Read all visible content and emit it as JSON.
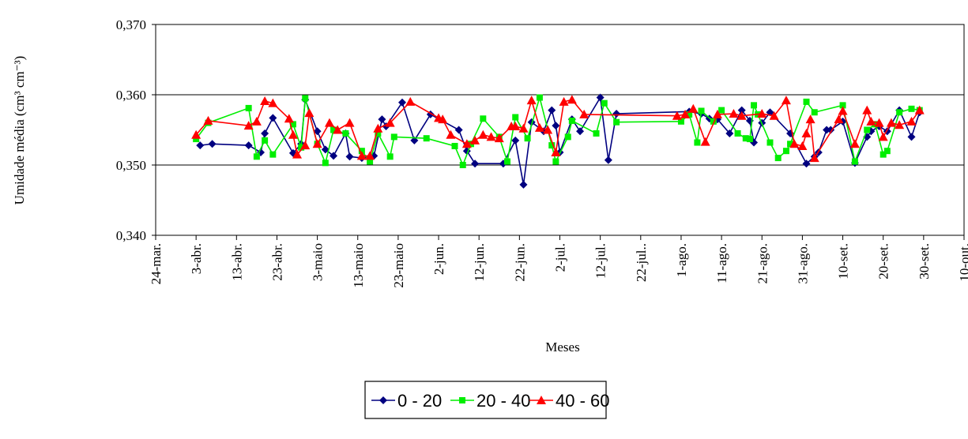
{
  "chart_data": {
    "type": "line",
    "y_label": "Umidade média (cm³ cm⁻³)",
    "x_label": "Meses",
    "xlim": [
      83,
      283
    ],
    "xticks": [
      {
        "value": 83,
        "label": "24-mar."
      },
      {
        "value": 93,
        "label": "3-abr."
      },
      {
        "value": 103,
        "label": "13-abr."
      },
      {
        "value": 113,
        "label": "23-abr."
      },
      {
        "value": 123,
        "label": "3-maio"
      },
      {
        "value": 133,
        "label": "13-maio"
      },
      {
        "value": 143,
        "label": "23-maio"
      },
      {
        "value": 153,
        "label": "2-jun."
      },
      {
        "value": 163,
        "label": "12-jun."
      },
      {
        "value": 173,
        "label": "22-jun."
      },
      {
        "value": 183,
        "label": "2-jul."
      },
      {
        "value": 193,
        "label": "12-jul."
      },
      {
        "value": 203,
        "label": "22-jul.."
      },
      {
        "value": 213,
        "label": "1-ago."
      },
      {
        "value": 223,
        "label": "11-ago."
      },
      {
        "value": 233,
        "label": "21-ago."
      },
      {
        "value": 243,
        "label": "31-ago."
      },
      {
        "value": 253,
        "label": "10-set."
      },
      {
        "value": 263,
        "label": "20-set."
      },
      {
        "value": 273,
        "label": "30-set."
      },
      {
        "value": 283,
        "label": "10-out."
      }
    ],
    "ylim": [
      0.34,
      0.37
    ],
    "yticks": [
      {
        "value": 0.34,
        "label": "0,340"
      },
      {
        "value": 0.35,
        "label": "0,350"
      },
      {
        "value": 0.36,
        "label": "0,360"
      },
      {
        "value": 0.37,
        "label": "0,370"
      }
    ],
    "grid": true,
    "legend": "bottom",
    "series": [
      {
        "name": "0 - 20",
        "color": "#000080",
        "marker": "diamond",
        "x": [
          94,
          97,
          106,
          109,
          110,
          112,
          117,
          119,
          120,
          123,
          125,
          127,
          130,
          131,
          134,
          137,
          139,
          140,
          144,
          147,
          151,
          158,
          160,
          162,
          169,
          172,
          174,
          176,
          179,
          181,
          182,
          183,
          186,
          188,
          193,
          195,
          197,
          215,
          218,
          220,
          222,
          225,
          228,
          230,
          231,
          233,
          235,
          240,
          244,
          246,
          247,
          249,
          250,
          253,
          256,
          259,
          260,
          262,
          264,
          267,
          270,
          272
        ],
        "values": [
          0.3528,
          0.353,
          0.3528,
          0.3518,
          0.3545,
          0.3567,
          0.3517,
          0.353,
          0.3593,
          0.3548,
          0.3522,
          0.3513,
          0.3545,
          0.3512,
          0.351,
          0.3513,
          0.3565,
          0.3555,
          0.3589,
          0.3535,
          0.3572,
          0.355,
          0.352,
          0.3502,
          0.3502,
          0.3535,
          0.3472,
          0.3561,
          0.3548,
          0.3578,
          0.3556,
          0.3518,
          0.3565,
          0.3548,
          0.3596,
          0.3507,
          0.3573,
          0.3576,
          0.3573,
          0.3566,
          0.3565,
          0.3545,
          0.3578,
          0.3563,
          0.3532,
          0.356,
          0.3575,
          0.3545,
          0.3502,
          0.3512,
          0.3518,
          0.355,
          0.355,
          0.3562,
          0.3503,
          0.354,
          0.3548,
          0.3555,
          0.3548,
          0.3578,
          0.354,
          0.3575
        ]
      },
      {
        "name": "20 - 40",
        "color": "#00ee00",
        "marker": "square",
        "x": [
          93,
          96,
          106,
          108,
          110,
          112,
          117,
          119,
          120,
          123,
          125,
          127,
          130,
          134,
          136,
          138,
          141,
          142,
          150,
          157,
          159,
          161,
          164,
          168,
          170,
          172,
          175,
          178,
          181,
          182,
          185,
          186,
          192,
          194,
          197,
          213,
          215,
          217,
          218,
          221,
          223,
          227,
          229,
          230,
          231,
          232,
          235,
          237,
          239,
          240,
          244,
          246,
          253,
          256,
          259,
          261,
          263,
          264,
          267,
          270,
          272
        ],
        "values": [
          0.3537,
          0.356,
          0.3581,
          0.3512,
          0.3535,
          0.3515,
          0.3558,
          0.3525,
          0.3595,
          0.353,
          0.3503,
          0.355,
          0.3545,
          0.352,
          0.3505,
          0.3545,
          0.3512,
          0.354,
          0.3538,
          0.3527,
          0.35,
          0.353,
          0.3566,
          0.354,
          0.3505,
          0.3568,
          0.3538,
          0.3596,
          0.3528,
          0.3505,
          0.354,
          0.3563,
          0.3545,
          0.3588,
          0.3561,
          0.3562,
          0.3572,
          0.3532,
          0.3577,
          0.3562,
          0.3578,
          0.3545,
          0.3538,
          0.3537,
          0.3585,
          0.3572,
          0.3532,
          0.351,
          0.352,
          0.353,
          0.359,
          0.3575,
          0.3585,
          0.3505,
          0.355,
          0.3558,
          0.3515,
          0.352,
          0.3575,
          0.358,
          0.3578
        ]
      },
      {
        "name": "40 - 60",
        "color": "#ff0000",
        "marker": "triangle",
        "x": [
          93,
          96,
          106,
          108,
          110,
          112,
          116,
          117,
          118,
          120,
          121,
          123,
          126,
          128,
          131,
          134,
          136,
          138,
          141,
          146,
          153,
          154,
          156,
          160,
          162,
          164,
          166,
          168,
          171,
          172,
          174,
          176,
          178,
          180,
          182,
          184,
          186,
          189,
          212,
          214,
          216,
          219,
          222,
          226,
          228,
          233,
          236,
          239,
          241,
          243,
          244,
          245,
          246,
          252,
          253,
          256,
          259,
          260,
          262,
          263,
          265,
          267,
          270,
          272
        ],
        "values": [
          0.3543,
          0.3563,
          0.3556,
          0.3562,
          0.3591,
          0.3588,
          0.3566,
          0.3543,
          0.3515,
          0.3528,
          0.3574,
          0.353,
          0.356,
          0.355,
          0.356,
          0.3513,
          0.3513,
          0.3552,
          0.356,
          0.359,
          0.3567,
          0.3565,
          0.3543,
          0.353,
          0.3535,
          0.3543,
          0.354,
          0.3538,
          0.3555,
          0.3555,
          0.3552,
          0.3592,
          0.3553,
          0.355,
          0.3518,
          0.359,
          0.3593,
          0.3572,
          0.357,
          0.3572,
          0.358,
          0.3533,
          0.3572,
          0.3573,
          0.357,
          0.3573,
          0.357,
          0.3592,
          0.353,
          0.3527,
          0.3545,
          0.3565,
          0.351,
          0.3565,
          0.3577,
          0.353,
          0.3578,
          0.3562,
          0.356,
          0.354,
          0.356,
          0.3557,
          0.3562,
          0.3578
        ]
      }
    ]
  }
}
